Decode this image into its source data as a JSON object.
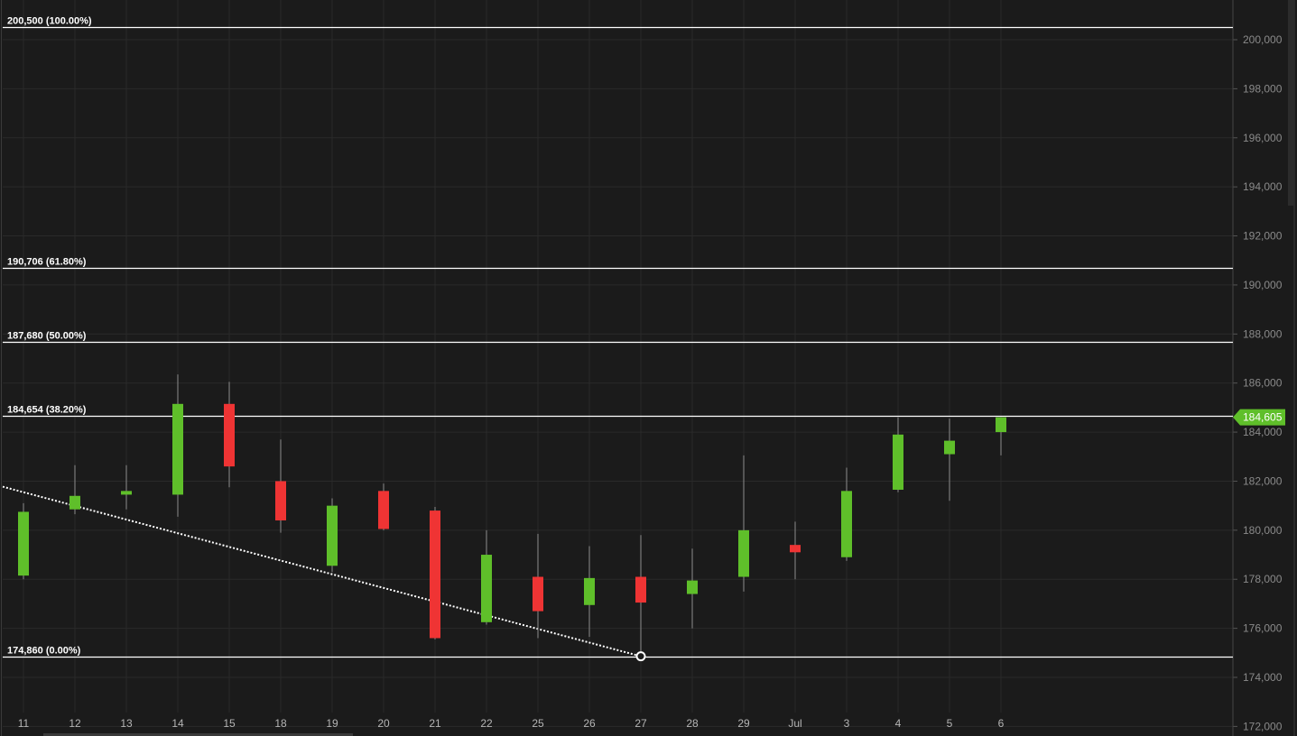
{
  "colors": {
    "background": "#1b1b1b",
    "grid": "#2a2a2a",
    "up": "#5fbf2a",
    "down": "#ef3434",
    "wick": "#8c8c8c",
    "fib_line": "#ffffff",
    "axis_text": "#8a8a8a",
    "price_tag": "#5fbf2a"
  },
  "chart_data": {
    "type": "candlestick",
    "ylim": [
      172000,
      201000
    ],
    "yticks": [
      {
        "value": 200000,
        "label": "200,000"
      },
      {
        "value": 198000,
        "label": "198,000"
      },
      {
        "value": 196000,
        "label": "196,000"
      },
      {
        "value": 194000,
        "label": "194,000"
      },
      {
        "value": 192000,
        "label": "192,000"
      },
      {
        "value": 190000,
        "label": "190,000"
      },
      {
        "value": 188000,
        "label": "188,000"
      },
      {
        "value": 186000,
        "label": "186,000"
      },
      {
        "value": 184000,
        "label": "184,000"
      },
      {
        "value": 182000,
        "label": "182,000"
      },
      {
        "value": 180000,
        "label": "180,000"
      },
      {
        "value": 178000,
        "label": "178,000"
      },
      {
        "value": 176000,
        "label": "176,000"
      },
      {
        "value": 174000,
        "label": "174,000"
      },
      {
        "value": 172000,
        "label": "172,000"
      }
    ],
    "candles": [
      {
        "x": "11",
        "open": 178150,
        "high": 181100,
        "low": 178000,
        "close": 180750
      },
      {
        "x": "12",
        "open": 180850,
        "high": 182650,
        "low": 180650,
        "close": 181400
      },
      {
        "x": "13",
        "open": 181450,
        "high": 182650,
        "low": 180850,
        "close": 181600
      },
      {
        "x": "14",
        "open": 181450,
        "high": 186350,
        "low": 180550,
        "close": 185150
      },
      {
        "x": "15",
        "open": 185150,
        "high": 186050,
        "low": 181750,
        "close": 182600
      },
      {
        "x": "18",
        "open": 182000,
        "high": 183700,
        "low": 179900,
        "close": 180400
      },
      {
        "x": "19",
        "open": 178550,
        "high": 181300,
        "low": 178300,
        "close": 181000
      },
      {
        "x": "20",
        "open": 181600,
        "high": 181900,
        "low": 180000,
        "close": 180050
      },
      {
        "x": "21",
        "open": 180800,
        "high": 180950,
        "low": 175550,
        "close": 175600
      },
      {
        "x": "22",
        "open": 176250,
        "high": 180000,
        "low": 176150,
        "close": 179000
      },
      {
        "x": "25",
        "open": 178100,
        "high": 179850,
        "low": 175600,
        "close": 176700
      },
      {
        "x": "26",
        "open": 176950,
        "high": 179350,
        "low": 175650,
        "close": 178050
      },
      {
        "x": "27",
        "open": 178100,
        "high": 179800,
        "low": 174860,
        "close": 177050
      },
      {
        "x": "28",
        "open": 177400,
        "high": 179250,
        "low": 176000,
        "close": 177950
      },
      {
        "x": "29",
        "open": 178100,
        "high": 183050,
        "low": 177500,
        "close": 180000
      },
      {
        "x": "Jul",
        "open": 179400,
        "high": 180350,
        "low": 178000,
        "close": 179100
      },
      {
        "x": "3",
        "open": 178900,
        "high": 182550,
        "low": 178750,
        "close": 181600
      },
      {
        "x": "4",
        "open": 181650,
        "high": 184600,
        "low": 181550,
        "close": 183900
      },
      {
        "x": "5",
        "open": 183100,
        "high": 184550,
        "low": 181200,
        "close": 183650
      },
      {
        "x": "6",
        "open": 184000,
        "high": 184605,
        "low": 183050,
        "close": 184605
      }
    ],
    "fib_levels": [
      {
        "value": 200500,
        "label": "200,500 (100.00%)"
      },
      {
        "value": 190706,
        "label": "190,706 (61.80%)"
      },
      {
        "value": 187680,
        "label": "187,680 (50.00%)"
      },
      {
        "value": 184654,
        "label": "184,654 (38.20%)"
      },
      {
        "value": 174860,
        "label": "174,860 (0.00%)"
      }
    ],
    "trendline": {
      "start": {
        "x": "11",
        "y": 181550
      },
      "end": {
        "x": "27",
        "y": 174860
      }
    },
    "last_price": {
      "value": 184605,
      "label": "184,605"
    }
  }
}
